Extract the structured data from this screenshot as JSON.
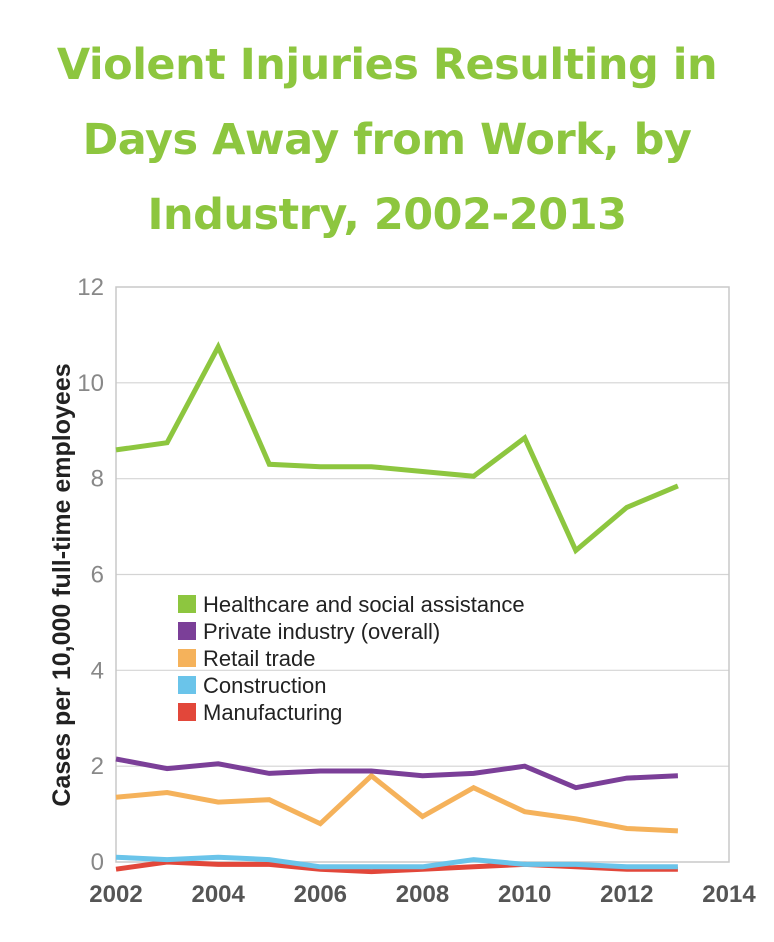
{
  "title_lines": [
    "Violent Injuries Resulting in",
    "Days Away from Work, by",
    "Industry, 2002-2013"
  ],
  "chart_data": {
    "type": "line",
    "title": "Violent Injuries Resulting in Days Away from Work, by Industry, 2002-2013",
    "xlabel": "",
    "ylabel": "Cases per 10,000 full-time employees",
    "xlim": [
      2002,
      2014
    ],
    "ylim": [
      0,
      12
    ],
    "xticks": [
      2002,
      2004,
      2006,
      2008,
      2010,
      2012,
      2014
    ],
    "yticks": [
      0,
      2,
      4,
      6,
      8,
      10,
      12
    ],
    "grid": "horizontal",
    "legend_position": "center-left",
    "x": [
      2002,
      2003,
      2004,
      2005,
      2006,
      2007,
      2008,
      2009,
      2010,
      2011,
      2012,
      2013
    ],
    "series": [
      {
        "name": "Healthcare and social assistance",
        "color": "#8dc63f",
        "values": [
          8.6,
          8.75,
          10.75,
          8.3,
          8.25,
          8.25,
          8.15,
          8.05,
          8.85,
          6.5,
          7.4,
          7.85
        ]
      },
      {
        "name": "Private industry (overall)",
        "color": "#7b3f98",
        "values": [
          2.15,
          1.95,
          2.05,
          1.85,
          1.9,
          1.9,
          1.8,
          1.85,
          2.0,
          1.55,
          1.75,
          1.8
        ]
      },
      {
        "name": "Retail trade",
        "color": "#f5b25b",
        "values": [
          1.35,
          1.45,
          1.25,
          1.3,
          0.8,
          1.8,
          0.95,
          1.55,
          1.05,
          0.9,
          0.7,
          0.65
        ]
      },
      {
        "name": "Construction",
        "color": "#6ac4ea",
        "values": [
          0.1,
          0.05,
          0.1,
          0.05,
          -0.1,
          -0.1,
          -0.1,
          0.05,
          -0.05,
          -0.05,
          -0.1,
          -0.1
        ]
      },
      {
        "name": "Manufacturing",
        "color": "#e2473a",
        "values": [
          -0.15,
          0.0,
          -0.05,
          -0.05,
          -0.15,
          -0.2,
          -0.15,
          -0.1,
          -0.05,
          -0.1,
          -0.15,
          -0.15
        ]
      }
    ]
  }
}
